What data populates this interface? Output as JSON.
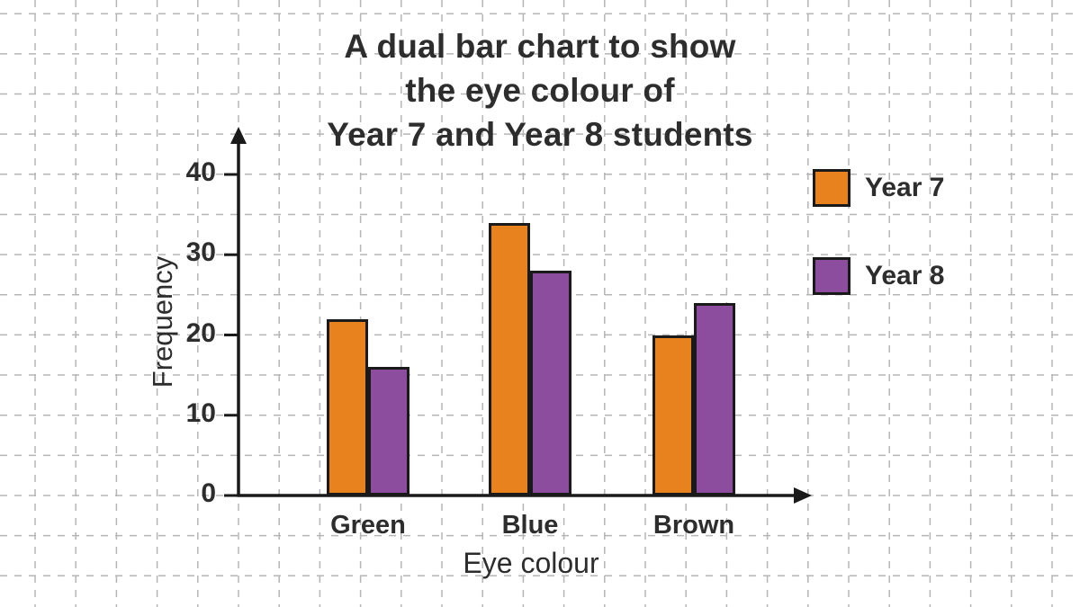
{
  "chart_data": {
    "type": "bar",
    "title": "A dual bar chart to show the eye colour of Year 7 and Year 8 students",
    "title_lines": [
      "A dual bar chart to show",
      "the eye colour of",
      "Year 7 and Year 8 students"
    ],
    "xlabel": "Eye colour",
    "ylabel": "Frequency",
    "categories": [
      "Green",
      "Blue",
      "Brown"
    ],
    "series": [
      {
        "name": "Year 7",
        "color": "#E8821E",
        "values": [
          22,
          34,
          20
        ]
      },
      {
        "name": "Year 8",
        "color": "#8C4D9F",
        "values": [
          16,
          28,
          24
        ]
      }
    ],
    "ylim": [
      0,
      40
    ],
    "yticks": [
      0,
      10,
      20,
      30,
      40
    ],
    "grid": "dashed",
    "legend_position": "right"
  },
  "colors": {
    "axis": "#1a1a1a",
    "grid": "#b5b5b5",
    "text": "#2d2d2d",
    "bar_border": "#1a1a1a"
  }
}
